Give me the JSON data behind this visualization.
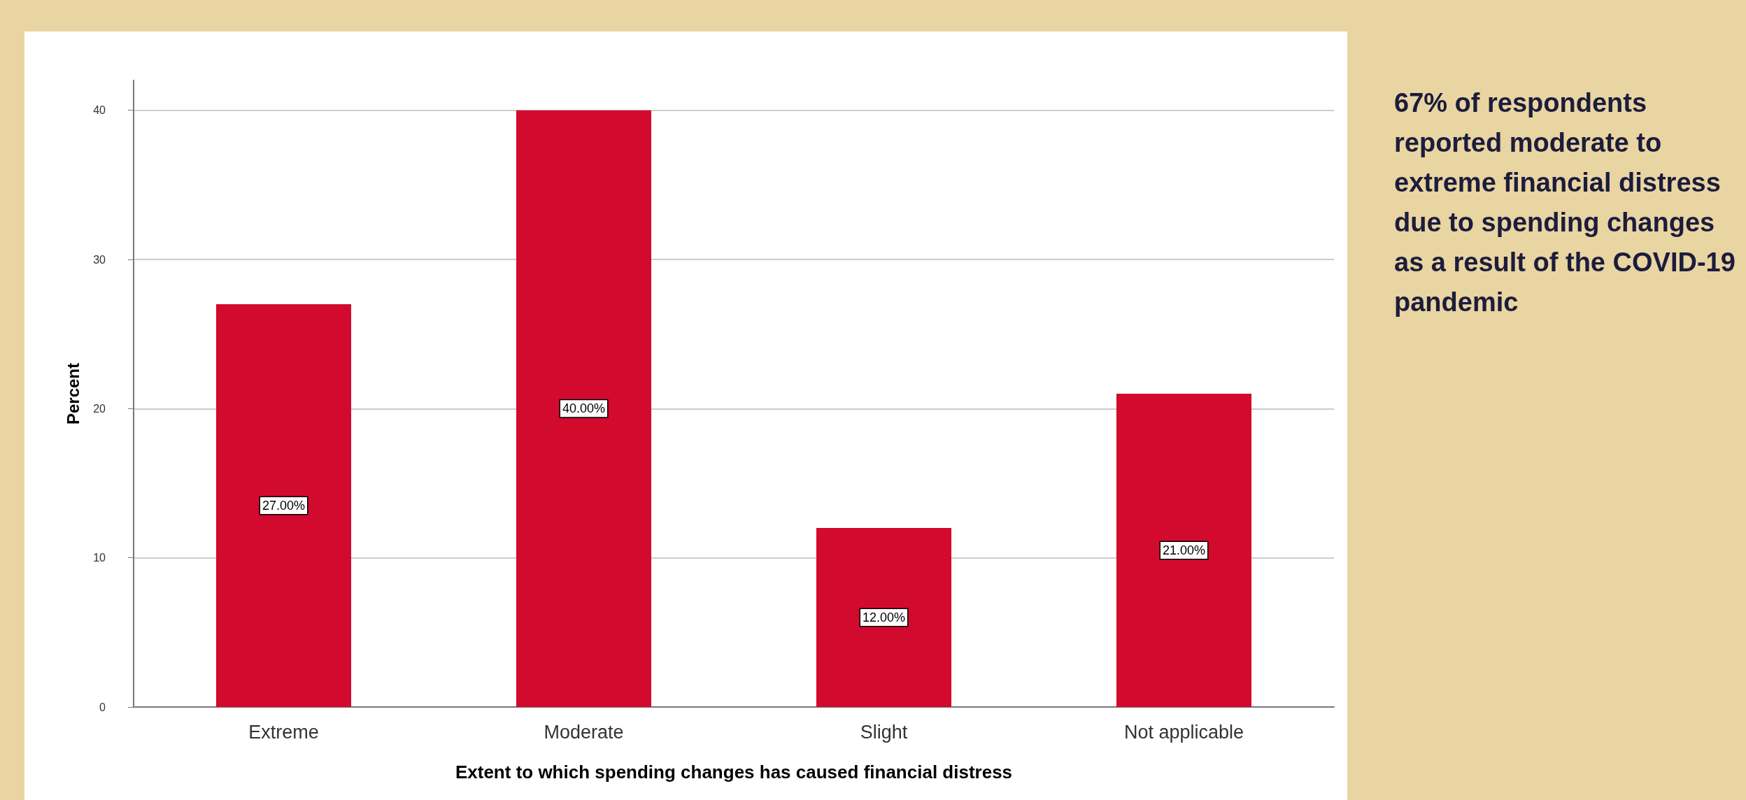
{
  "chart_data": {
    "type": "bar",
    "xlabel": "Extent to which spending changes has caused financial distress",
    "ylabel": "Percent",
    "categories": [
      "Extreme",
      "Moderate",
      "Slight",
      "Not applicable"
    ],
    "values": [
      27,
      40,
      12,
      21
    ],
    "color": "#d20a2e",
    "value_labels": [
      "27.00%",
      "40.00%",
      "12.00%",
      "21.00%"
    ],
    "ylim": [
      0,
      42
    ],
    "yticks": [
      0,
      10,
      20,
      30,
      40
    ],
    "grid": "y",
    "annotations": [
      "67% of respondents reported moderate to extreme financial distress due to spending changes as a result of the COVID-19 pandemic"
    ]
  }
}
